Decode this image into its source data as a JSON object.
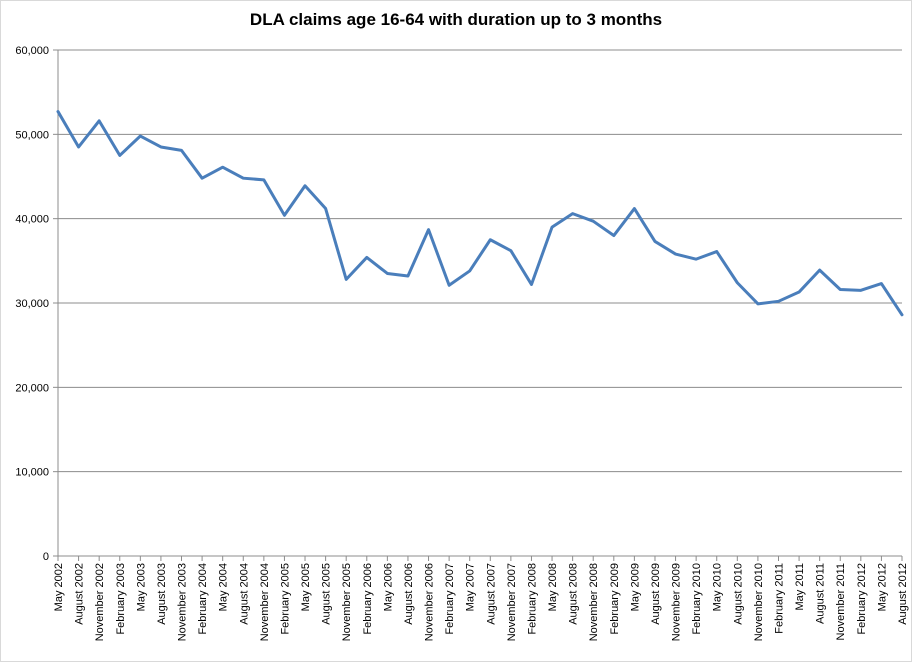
{
  "chart_data": {
    "type": "line",
    "title": "DLA claims age 16-64 with duration up to 3 months",
    "xlabel": "",
    "ylabel": "",
    "ylim": [
      0,
      60000
    ],
    "yticks": [
      0,
      10000,
      20000,
      30000,
      40000,
      50000,
      60000
    ],
    "ytick_labels": [
      "0",
      "10,000",
      "20,000",
      "30,000",
      "40,000",
      "50,000",
      "60,000"
    ],
    "grid": true,
    "legend": "none",
    "series_color": "#4a7ebb",
    "categories": [
      "May 2002",
      "August 2002",
      "November 2002",
      "February 2003",
      "May 2003",
      "August 2003",
      "November 2003",
      "February 2004",
      "May 2004",
      "August 2004",
      "November 2004",
      "February 2005",
      "May 2005",
      "August 2005",
      "November 2005",
      "February 2006",
      "May 2006",
      "August 2006",
      "November 2006",
      "February 2007",
      "May 2007",
      "August 2007",
      "November 2007",
      "February 2008",
      "May 2008",
      "August 2008",
      "November 2008",
      "February 2009",
      "May 2009",
      "August 2009",
      "November 2009",
      "February 2010",
      "May 2010",
      "August 2010",
      "November 2010",
      "February 2011",
      "May 2011",
      "August 2011",
      "November 2011",
      "February 2012",
      "May 2012",
      "August 2012"
    ],
    "series": [
      {
        "values": [
          52700,
          48500,
          51600,
          47500,
          49800,
          48500,
          48100,
          44800,
          46100,
          44800,
          44600,
          40400,
          43900,
          41200,
          32800,
          35400,
          33500,
          33200,
          38700,
          32100,
          33800,
          37500,
          36200,
          32200,
          39000,
          40600,
          39700,
          38000,
          41200,
          37300,
          35800,
          35200,
          36100,
          32400,
          29900,
          30200,
          31300,
          33900,
          31600,
          31500,
          32300,
          28600
        ]
      }
    ]
  }
}
